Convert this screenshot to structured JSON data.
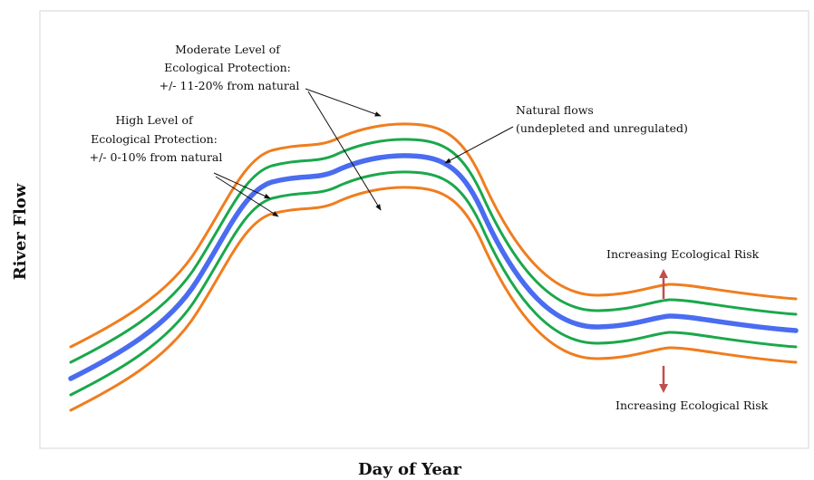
{
  "diagram": {
    "y_axis_label": "River Flow",
    "x_axis_label": "Day of Year",
    "annotations": {
      "moderate": [
        "Moderate Level of",
        "Ecological Protection:",
        "+/- 11-20% from natural"
      ],
      "high": [
        "High Level of",
        "Ecological Protection:",
        "+/- 0-10% from natural"
      ],
      "natural": [
        "Natural flows",
        "(undepleted and unregulated)"
      ],
      "risk_up": "Increasing Ecological Risk",
      "risk_down": "Increasing Ecological Risk"
    },
    "colors": {
      "natural": "#4a6cf0",
      "high_band": "#1aa84b",
      "moderate_band": "#f07d1e",
      "risk_arrow": "#c0504d",
      "frame": "#dddddd"
    }
  }
}
